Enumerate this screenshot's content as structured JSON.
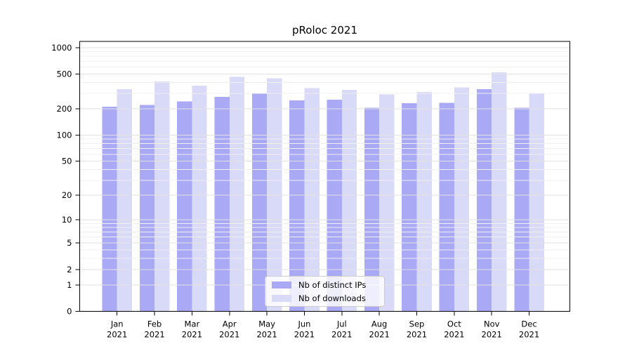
{
  "title": "pRoloc 2021",
  "colors": {
    "distinct_ips": "#a9a9f5",
    "downloads": "#d9d9f8",
    "grid_major": "#e2e2e2",
    "grid_minor": "#f0f0f0",
    "axis": "#000000",
    "text": "#000000",
    "legend_border": "#cccccc"
  },
  "chart_data": {
    "type": "bar",
    "title": "pRoloc 2021",
    "categories": [
      "Jan",
      "Feb",
      "Mar",
      "Apr",
      "May",
      "Jun",
      "Jul",
      "Aug",
      "Sep",
      "Oct",
      "Nov",
      "Dec"
    ],
    "category_year": "2021",
    "series": [
      {
        "name": "Nb of distinct IPs",
        "values": [
          212,
          222,
          243,
          275,
          301,
          251,
          255,
          206,
          233,
          234,
          337,
          206
        ]
      },
      {
        "name": "Nb of downloads",
        "values": [
          337,
          410,
          369,
          464,
          449,
          347,
          330,
          293,
          311,
          352,
          524,
          304
        ]
      }
    ],
    "y_axis": {
      "scale": "log1p",
      "tick_values": [
        0,
        1,
        2,
        5,
        10,
        20,
        50,
        100,
        200,
        500,
        1000
      ],
      "ylim": [
        0,
        1170
      ],
      "minor_gridlines": [
        1,
        2,
        3,
        4,
        5,
        6,
        7,
        8,
        9,
        10,
        20,
        30,
        40,
        50,
        60,
        70,
        80,
        90,
        100,
        200,
        300,
        400,
        500,
        600,
        700,
        800,
        900,
        1000
      ]
    },
    "xlabel": "",
    "ylabel": "",
    "grid": "horizontal, drawn above bars",
    "legend_position": "lower center"
  }
}
